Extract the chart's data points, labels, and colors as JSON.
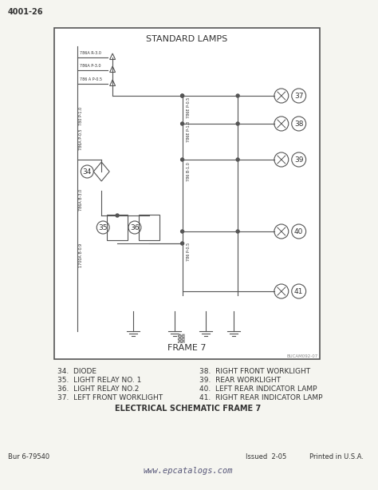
{
  "page_number": "4001-26",
  "diagram_title": "STANDARD LAMPS",
  "frame_label": "FRAME 7",
  "frame_ref": "BUCAM092-07",
  "footer_left": "Bur 6-79540",
  "footer_mid1": "Issued  2-05",
  "footer_mid2": "Printed in U.S.A.",
  "footer_right": "www.epcatalogs.com",
  "legend_items": [
    "34.  DIODE",
    "35.  LIGHT RELAY NO. 1",
    "36.  LIGHT RELAY NO.2",
    "37.  LEFT FRONT WORKLIGHT"
  ],
  "legend_items_right": [
    "38.  RIGHT FRONT WORKLIGHT",
    "39.  REAR WORKLIGHT",
    "40.  LEFT REAR INDICATOR LAMP",
    "41.  RIGHT REAR INDICATOR LAMP"
  ],
  "legend_bold": "ELECTRICAL SCHEMATIC FRAME 7",
  "bg_color": "#f5f5f0",
  "diagram_bg": "#ffffff",
  "border_color": "#555555",
  "line_color": "#333333",
  "text_color": "#333333",
  "component_numbers": [
    "34",
    "35",
    "36",
    "37",
    "38",
    "39",
    "40",
    "41"
  ]
}
